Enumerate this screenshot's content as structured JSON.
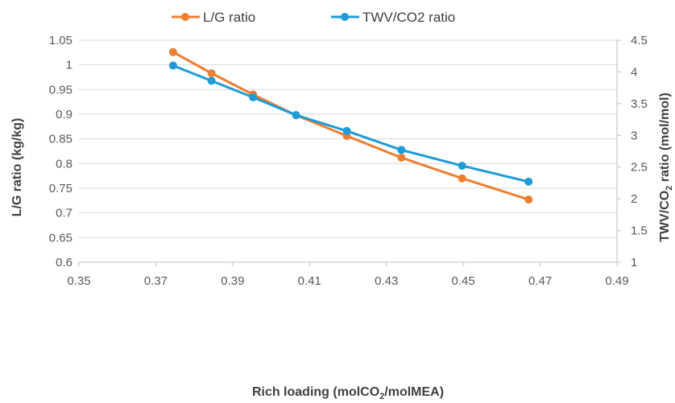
{
  "chart_data": {
    "type": "line",
    "title": "",
    "xlabel": {
      "before": "Rich loading (molCO",
      "sub": "2",
      "after": "/molMEA)"
    },
    "ylabel_left": "L/G ratio (kg/kg)",
    "ylabel_right": {
      "before": "TWV/CO",
      "sub": "2",
      "after": " ratio (mol/mol)"
    },
    "xlim": [
      0.35,
      0.49
    ],
    "ylim_left": [
      0.6,
      1.05
    ],
    "ylim_right": [
      1,
      4.5
    ],
    "x_ticks": [
      "0.35",
      "0.37",
      "0.39",
      "0.41",
      "0.43",
      "0.45",
      "0.47",
      "0.49"
    ],
    "y_left_ticks": [
      "0.6",
      "0.65",
      "0.7",
      "0.75",
      "0.8",
      "0.85",
      "0.9",
      "0.95",
      "1",
      "1.05"
    ],
    "y_right_ticks": [
      "1",
      "1.5",
      "2",
      "2.5",
      "3",
      "3.5",
      "4",
      "4.5"
    ],
    "legend_position": "top-center",
    "gridlines": "horizontal",
    "series": [
      {
        "name": "L/G ratio",
        "axis": "left",
        "color": "#ED7D31",
        "x": [
          0.3745,
          0.3845,
          0.3953,
          0.4065,
          0.4197,
          0.4339,
          0.4497,
          0.467
        ],
        "y": [
          1.026,
          0.983,
          0.94,
          0.898,
          0.856,
          0.812,
          0.77,
          0.727
        ]
      },
      {
        "name": "TWV/CO2 ratio",
        "axis": "right",
        "color": "#1F9BD7",
        "x": [
          0.3745,
          0.3845,
          0.3953,
          0.4065,
          0.4197,
          0.4339,
          0.4497,
          0.467
        ],
        "y": [
          4.1,
          3.86,
          3.6,
          3.32,
          3.07,
          2.77,
          2.52,
          2.27
        ]
      }
    ]
  }
}
